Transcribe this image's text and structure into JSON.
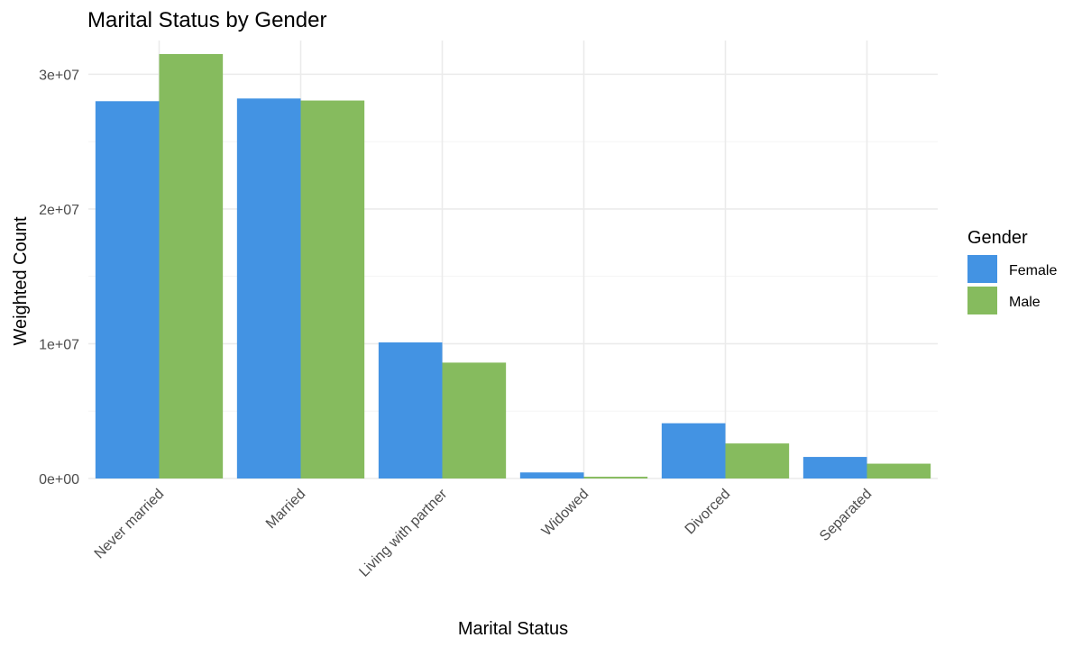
{
  "chart_data": {
    "type": "bar",
    "title": "Marital Status by Gender",
    "xlabel": "Marital Status",
    "ylabel": "Weighted Count",
    "categories": [
      "Never married",
      "Married",
      "Living with partner",
      "Widowed",
      "Divorced",
      "Separated"
    ],
    "series": [
      {
        "name": "Female",
        "color": "#4393e3",
        "values": [
          28000000,
          28200000,
          10100000,
          450000,
          4100000,
          1600000
        ]
      },
      {
        "name": "Male",
        "color": "#86bb5e",
        "values": [
          31500000,
          28050000,
          8600000,
          130000,
          2600000,
          1100000
        ]
      }
    ],
    "ylim": [
      0,
      32500000
    ],
    "yticks": [
      0,
      10000000,
      20000000,
      30000000
    ],
    "ytick_labels": [
      "0e+00",
      "1e+07",
      "2e+07",
      "3e+07"
    ],
    "grid": true,
    "legend": {
      "title": "Gender",
      "placement": "right"
    }
  }
}
